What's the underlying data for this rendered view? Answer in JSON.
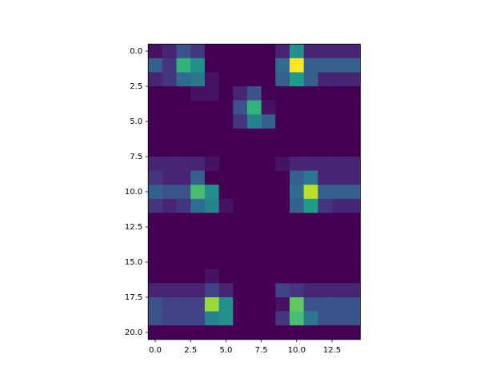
{
  "chart_data": {
    "type": "heatmap",
    "colormap": "viridis",
    "clim": [
      0,
      1
    ],
    "xlim": [
      -0.5,
      14.5
    ],
    "ylim": [
      20.5,
      -0.5
    ],
    "xticks": [
      {
        "value": 0,
        "label": "0.0"
      },
      2.5,
      {
        "value": 5,
        "label": "5.0"
      },
      7.5,
      {
        "value": 10,
        "label": "10.0"
      },
      12.5
    ],
    "yticks": [
      {
        "value": 0,
        "label": "0.0"
      },
      2.5,
      {
        "value": 5,
        "label": "5.0"
      },
      7.5,
      {
        "value": 10,
        "label": "10.0"
      },
      12.5,
      {
        "value": 15,
        "label": "15.0"
      },
      17.5,
      {
        "value": 20,
        "label": "20.0"
      }
    ],
    "values": [
      [
        0.05,
        0.1,
        0.25,
        0.15,
        0,
        0,
        0,
        0,
        0,
        0.1,
        0.5,
        0.1,
        0.1,
        0.1,
        0.1
      ],
      [
        0.3,
        0.15,
        0.65,
        0.5,
        0,
        0,
        0,
        0,
        0,
        0.35,
        1.0,
        0.3,
        0.3,
        0.3,
        0.3
      ],
      [
        0.1,
        0.15,
        0.35,
        0.4,
        0.05,
        0,
        0,
        0,
        0,
        0.3,
        0.55,
        0.3,
        0.1,
        0.1,
        0.1
      ],
      [
        0,
        0,
        0,
        0.05,
        0.05,
        0,
        0.1,
        0.25,
        0,
        0,
        0,
        0,
        0,
        0,
        0
      ],
      [
        0,
        0,
        0,
        0,
        0,
        0,
        0.25,
        0.65,
        0.05,
        0,
        0,
        0,
        0,
        0,
        0
      ],
      [
        0,
        0,
        0,
        0,
        0,
        0,
        0.15,
        0.45,
        0.3,
        0,
        0,
        0,
        0,
        0,
        0
      ],
      [
        0,
        0,
        0,
        0,
        0,
        0,
        0,
        0,
        0,
        0,
        0,
        0,
        0,
        0,
        0
      ],
      [
        0,
        0,
        0,
        0,
        0,
        0,
        0,
        0,
        0,
        0,
        0,
        0,
        0,
        0,
        0
      ],
      [
        0.1,
        0.1,
        0.1,
        0.1,
        0.05,
        0,
        0,
        0,
        0,
        0.05,
        0.1,
        0.1,
        0.1,
        0.1,
        0.1
      ],
      [
        0.15,
        0.1,
        0.1,
        0.3,
        0,
        0,
        0,
        0,
        0,
        0,
        0.3,
        0.4,
        0.1,
        0.1,
        0.1
      ],
      [
        0.3,
        0.25,
        0.25,
        0.7,
        0.5,
        0,
        0,
        0,
        0,
        0,
        0.35,
        0.9,
        0.3,
        0.3,
        0.3
      ],
      [
        0.15,
        0.1,
        0.15,
        0.35,
        0.45,
        0.05,
        0,
        0,
        0,
        0,
        0.3,
        0.55,
        0.15,
        0.1,
        0.1
      ],
      [
        0,
        0,
        0,
        0,
        0,
        0,
        0,
        0,
        0,
        0,
        0,
        0,
        0,
        0,
        0
      ],
      [
        0,
        0,
        0,
        0,
        0,
        0,
        0,
        0,
        0,
        0,
        0,
        0,
        0,
        0,
        0
      ],
      [
        0,
        0,
        0,
        0,
        0,
        0,
        0,
        0,
        0,
        0,
        0,
        0,
        0,
        0,
        0
      ],
      [
        0,
        0,
        0,
        0,
        0,
        0,
        0,
        0,
        0,
        0,
        0,
        0,
        0,
        0,
        0
      ],
      [
        0,
        0,
        0,
        0,
        0.05,
        0,
        0,
        0,
        0,
        0,
        0,
        0,
        0,
        0,
        0
      ],
      [
        0.1,
        0.1,
        0.1,
        0.1,
        0.2,
        0.1,
        0,
        0,
        0,
        0.2,
        0.15,
        0.1,
        0.1,
        0.1,
        0.1
      ],
      [
        0.25,
        0.2,
        0.2,
        0.2,
        0.85,
        0.5,
        0,
        0,
        0,
        0.05,
        0.75,
        0.25,
        0.25,
        0.25,
        0.25
      ],
      [
        0.25,
        0.2,
        0.2,
        0.2,
        0.45,
        0.5,
        0,
        0,
        0,
        0.15,
        0.7,
        0.4,
        0.25,
        0.25,
        0.25
      ],
      [
        0,
        0,
        0,
        0,
        0,
        0,
        0,
        0,
        0,
        0,
        0,
        0,
        0,
        0,
        0
      ]
    ]
  }
}
